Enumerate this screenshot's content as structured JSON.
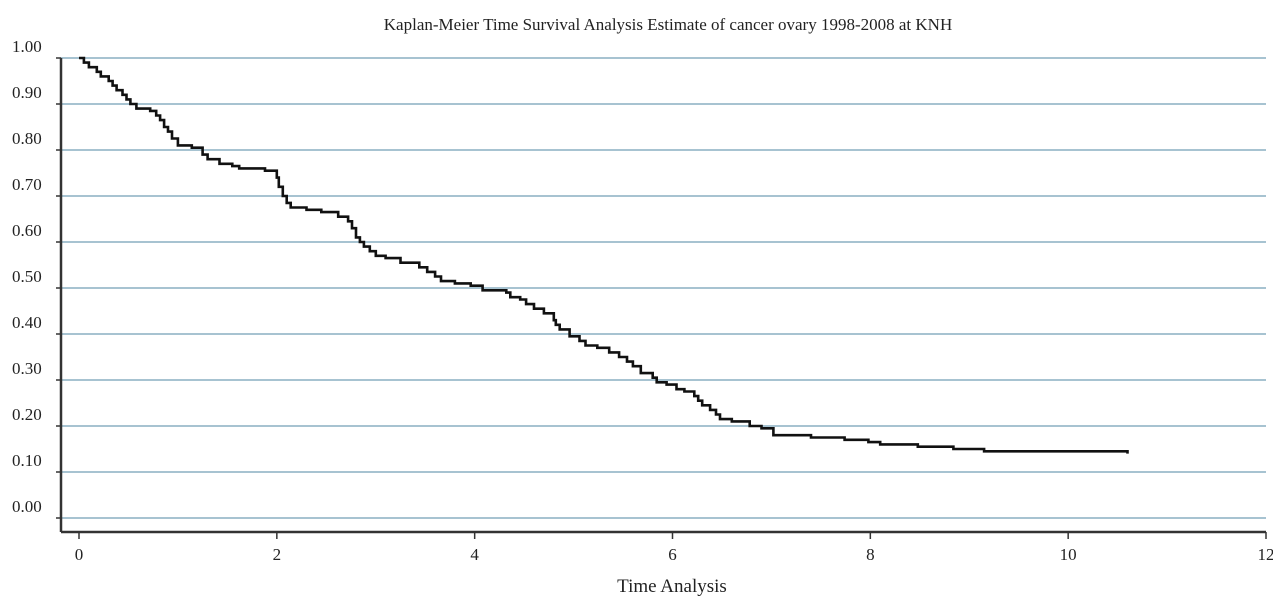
{
  "chart_data": {
    "type": "line",
    "title": "Kaplan-Meier Time Survival Analysis Estimate of cancer ovary 1998-2008 at KNH",
    "xlabel": "Time Analysis",
    "ylabel": "",
    "xlim": [
      0,
      12
    ],
    "ylim": [
      0,
      1
    ],
    "xticks": [
      "0",
      "2",
      "4",
      "6",
      "8",
      "10",
      "12"
    ],
    "xtick_values": [
      0,
      2,
      4,
      6,
      8,
      10,
      12
    ],
    "yticks": [
      "1.00",
      "0.90",
      "0.80",
      "0.70",
      "0.60",
      "0.50",
      "0.40",
      "0.30",
      "0.20",
      "0.10",
      "0.00"
    ],
    "grid": true,
    "legend": "none",
    "colors": {
      "line": "#111111",
      "grid": "#8aafc2",
      "axis": "#333333"
    },
    "series": [
      {
        "values": [
          [
            0.0,
            1.0
          ],
          [
            0.05,
            0.99
          ],
          [
            0.1,
            0.98
          ],
          [
            0.18,
            0.97
          ],
          [
            0.22,
            0.96
          ],
          [
            0.3,
            0.95
          ],
          [
            0.34,
            0.94
          ],
          [
            0.38,
            0.93
          ],
          [
            0.44,
            0.92
          ],
          [
            0.48,
            0.91
          ],
          [
            0.52,
            0.9
          ],
          [
            0.58,
            0.89
          ],
          [
            0.72,
            0.885
          ],
          [
            0.78,
            0.875
          ],
          [
            0.82,
            0.865
          ],
          [
            0.86,
            0.85
          ],
          [
            0.9,
            0.84
          ],
          [
            0.94,
            0.825
          ],
          [
            1.0,
            0.81
          ],
          [
            1.14,
            0.805
          ],
          [
            1.25,
            0.79
          ],
          [
            1.3,
            0.78
          ],
          [
            1.42,
            0.77
          ],
          [
            1.55,
            0.765
          ],
          [
            1.62,
            0.76
          ],
          [
            1.88,
            0.755
          ],
          [
            2.0,
            0.74
          ],
          [
            2.02,
            0.72
          ],
          [
            2.06,
            0.7
          ],
          [
            2.1,
            0.685
          ],
          [
            2.14,
            0.675
          ],
          [
            2.3,
            0.67
          ],
          [
            2.45,
            0.665
          ],
          [
            2.62,
            0.655
          ],
          [
            2.72,
            0.645
          ],
          [
            2.76,
            0.63
          ],
          [
            2.8,
            0.61
          ],
          [
            2.84,
            0.6
          ],
          [
            2.88,
            0.59
          ],
          [
            2.94,
            0.58
          ],
          [
            3.0,
            0.57
          ],
          [
            3.1,
            0.565
          ],
          [
            3.25,
            0.555
          ],
          [
            3.44,
            0.545
          ],
          [
            3.52,
            0.535
          ],
          [
            3.6,
            0.525
          ],
          [
            3.66,
            0.515
          ],
          [
            3.8,
            0.51
          ],
          [
            3.96,
            0.505
          ],
          [
            4.08,
            0.495
          ],
          [
            4.32,
            0.49
          ],
          [
            4.36,
            0.48
          ],
          [
            4.46,
            0.475
          ],
          [
            4.52,
            0.465
          ],
          [
            4.6,
            0.455
          ],
          [
            4.7,
            0.445
          ],
          [
            4.8,
            0.43
          ],
          [
            4.82,
            0.42
          ],
          [
            4.86,
            0.41
          ],
          [
            4.96,
            0.395
          ],
          [
            5.06,
            0.385
          ],
          [
            5.12,
            0.375
          ],
          [
            5.24,
            0.37
          ],
          [
            5.36,
            0.36
          ],
          [
            5.46,
            0.35
          ],
          [
            5.54,
            0.34
          ],
          [
            5.6,
            0.33
          ],
          [
            5.68,
            0.315
          ],
          [
            5.8,
            0.305
          ],
          [
            5.84,
            0.295
          ],
          [
            5.94,
            0.29
          ],
          [
            6.04,
            0.28
          ],
          [
            6.12,
            0.275
          ],
          [
            6.22,
            0.265
          ],
          [
            6.26,
            0.255
          ],
          [
            6.3,
            0.245
          ],
          [
            6.38,
            0.235
          ],
          [
            6.44,
            0.225
          ],
          [
            6.48,
            0.215
          ],
          [
            6.6,
            0.21
          ],
          [
            6.78,
            0.2
          ],
          [
            6.9,
            0.195
          ],
          [
            7.02,
            0.18
          ],
          [
            7.4,
            0.175
          ],
          [
            7.74,
            0.17
          ],
          [
            7.98,
            0.165
          ],
          [
            8.1,
            0.16
          ],
          [
            8.48,
            0.155
          ],
          [
            8.84,
            0.15
          ],
          [
            9.15,
            0.145
          ],
          [
            10.6,
            0.14
          ]
        ]
      }
    ]
  }
}
